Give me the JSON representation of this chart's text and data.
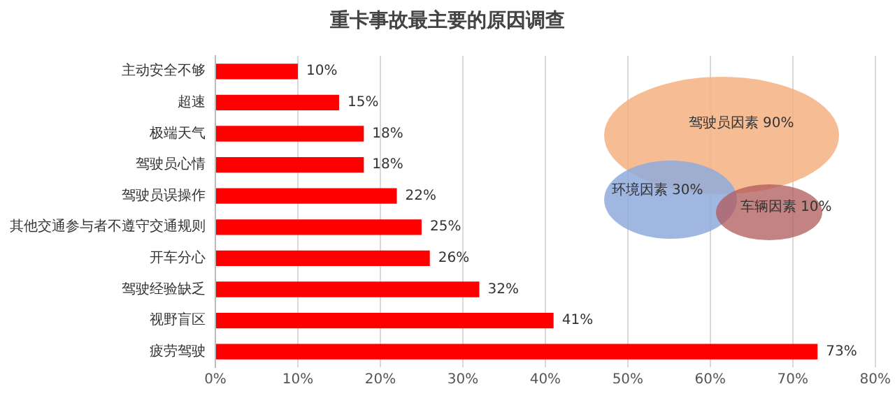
{
  "chart_data": {
    "type": "bar",
    "orientation": "horizontal",
    "title": "重卡事故最主要的原因调查",
    "categories": [
      "主动安全不够",
      "超速",
      "极端天气",
      "驾驶员心情",
      "驾驶员误操作",
      "其他交通参与者不遵守交通规则",
      "开车分心",
      "驾驶经验缺乏",
      "视野盲区",
      "疲劳驾驶"
    ],
    "values": [
      10,
      15,
      18,
      18,
      22,
      25,
      26,
      32,
      41,
      73
    ],
    "value_labels": [
      "10%",
      "15%",
      "18%",
      "18%",
      "22%",
      "25%",
      "26%",
      "32%",
      "41%",
      "73%"
    ],
    "color": "#ff0000",
    "xlim": [
      0,
      80
    ],
    "xticks": [
      {
        "value": 0,
        "label": "0%"
      },
      {
        "value": 10,
        "label": "10%"
      },
      {
        "value": 20,
        "label": "20%"
      },
      {
        "value": 30,
        "label": "30%"
      },
      {
        "value": 40,
        "label": "40%"
      },
      {
        "value": 50,
        "label": "50%"
      },
      {
        "value": 60,
        "label": "60%"
      },
      {
        "value": 70,
        "label": "70%"
      },
      {
        "value": 80,
        "label": "80%"
      }
    ],
    "grid": "x",
    "legend": false,
    "annotations": [
      "驾驶员因素 90%",
      "环境因素 30%",
      "车辆因素 10%"
    ]
  }
}
